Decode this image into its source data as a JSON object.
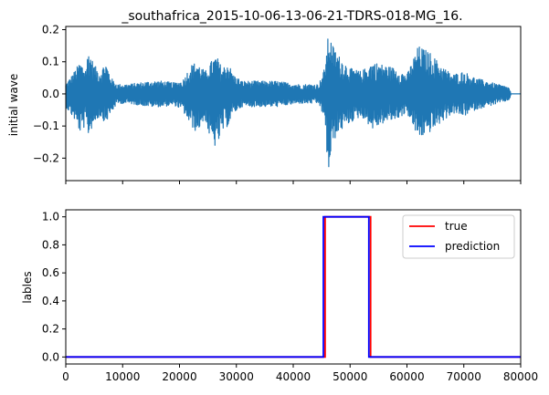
{
  "chart_data": [
    {
      "type": "line",
      "title": "_southafrica_2015-10-06-13-06-21-TDRS-018-MG_16.",
      "xlabel": "",
      "ylabel": "initial wave",
      "xlim": [
        0,
        80000
      ],
      "ylim": [
        -0.27,
        0.21
      ],
      "yticks": [
        -0.2,
        -0.1,
        0.0,
        0.1,
        0.2
      ],
      "ytick_labels": [
        "−0.2",
        "−0.1",
        "0.0",
        "0.1",
        "0.2"
      ],
      "xticks": [
        0,
        10000,
        20000,
        30000,
        40000,
        50000,
        60000,
        70000,
        80000
      ],
      "xtick_labels_visible": false,
      "series": [
        {
          "color": "#1f77b4",
          "description": "seismic waveform trace, amplitude envelope by x",
          "envelope_x": [
            0,
            1500,
            2500,
            3500,
            4000,
            5000,
            6000,
            7000,
            8000,
            9000,
            11000,
            13000,
            15000,
            17000,
            19000,
            20500,
            22000,
            23000,
            24500,
            25500,
            26500,
            27500,
            28500,
            29500,
            31000,
            33000,
            35000,
            37000,
            39000,
            41000,
            43000,
            44500,
            45500,
            46200,
            47000,
            48000,
            50000,
            52000,
            54000,
            56000,
            58000,
            60000,
            62000,
            64000,
            66000,
            68000,
            70000,
            72000,
            74000,
            76000,
            78000,
            78300
          ],
          "envelope_max": [
            0.03,
            0.07,
            0.1,
            0.08,
            0.14,
            0.09,
            0.07,
            0.1,
            0.05,
            0.03,
            0.03,
            0.035,
            0.04,
            0.04,
            0.035,
            0.04,
            0.09,
            0.1,
            0.07,
            0.1,
            0.12,
            0.08,
            0.1,
            0.06,
            0.04,
            0.04,
            0.04,
            0.04,
            0.035,
            0.03,
            0.03,
            0.03,
            0.08,
            0.19,
            0.15,
            0.12,
            0.08,
            0.07,
            0.1,
            0.09,
            0.08,
            0.06,
            0.15,
            0.13,
            0.09,
            0.06,
            0.07,
            0.05,
            0.04,
            0.03,
            0.02,
            0.0
          ],
          "envelope_min": [
            -0.04,
            -0.08,
            -0.12,
            -0.1,
            -0.13,
            -0.09,
            -0.07,
            -0.09,
            -0.06,
            -0.03,
            -0.03,
            -0.035,
            -0.04,
            -0.04,
            -0.035,
            -0.05,
            -0.1,
            -0.12,
            -0.08,
            -0.15,
            -0.17,
            -0.12,
            -0.1,
            -0.06,
            -0.04,
            -0.04,
            -0.04,
            -0.04,
            -0.035,
            -0.03,
            -0.03,
            -0.03,
            -0.08,
            -0.26,
            -0.15,
            -0.12,
            -0.09,
            -0.07,
            -0.11,
            -0.09,
            -0.08,
            -0.06,
            -0.14,
            -0.12,
            -0.09,
            -0.06,
            -0.07,
            -0.05,
            -0.04,
            -0.03,
            -0.02,
            0.0
          ],
          "tail_end": 80000
        }
      ]
    },
    {
      "type": "line",
      "title": "",
      "xlabel": "",
      "ylabel": "lables",
      "xlim": [
        0,
        80000
      ],
      "ylim": [
        -0.05,
        1.05
      ],
      "yticks": [
        0.0,
        0.2,
        0.4,
        0.6,
        0.8,
        1.0
      ],
      "ytick_labels": [
        "0.0",
        "0.2",
        "0.4",
        "0.6",
        "0.8",
        "1.0"
      ],
      "xticks": [
        0,
        10000,
        20000,
        30000,
        40000,
        50000,
        60000,
        70000,
        80000
      ],
      "xtick_labels": [
        "0",
        "10000",
        "20000",
        "30000",
        "40000",
        "50000",
        "60000",
        "70000",
        "80000"
      ],
      "legend": {
        "position": "upper-right"
      },
      "series": [
        {
          "name": "true",
          "color": "#ff0000",
          "x": [
            0,
            45600,
            45600,
            53600,
            53600,
            80000
          ],
          "y": [
            0,
            0,
            1,
            1,
            0,
            0
          ]
        },
        {
          "name": "prediction",
          "color": "#0000ff",
          "x": [
            0,
            45300,
            45300,
            53300,
            53300,
            80000
          ],
          "y": [
            0,
            0,
            1,
            1,
            0,
            0
          ]
        }
      ]
    }
  ]
}
